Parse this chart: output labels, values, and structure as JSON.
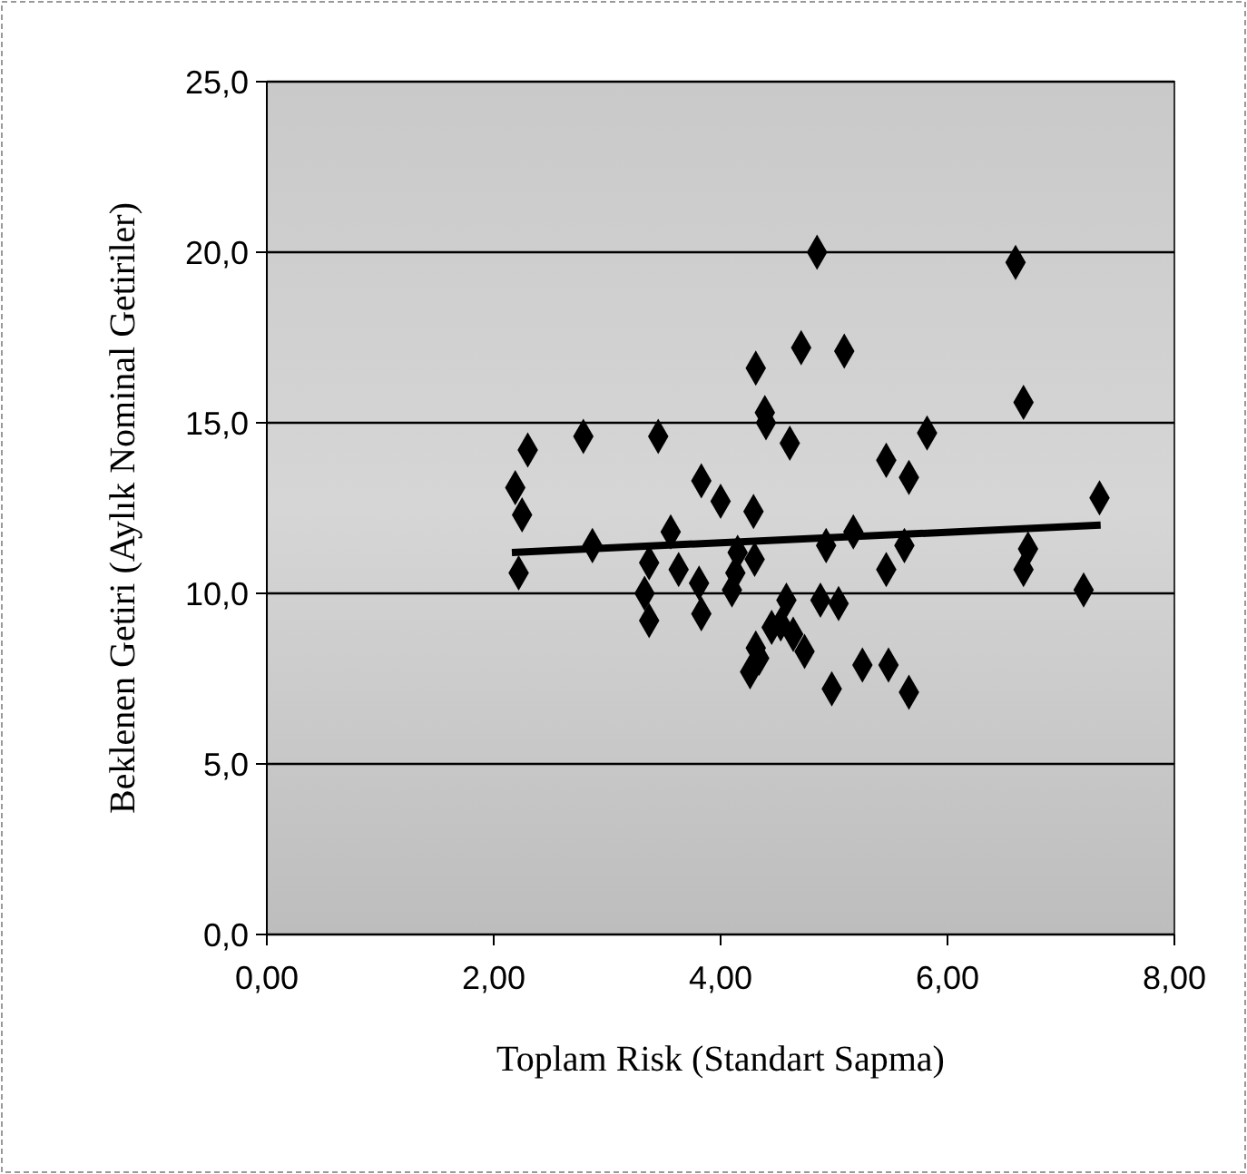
{
  "chart_data": {
    "type": "scatter",
    "xlabel": "Toplam Risk (Standart Sapma)",
    "ylabel": "Beklenen Getiri (Aylık Nominal Getiriler)",
    "xlim": [
      0,
      8
    ],
    "xticks": [
      {
        "value": 0,
        "label": "0,00"
      },
      {
        "value": 2,
        "label": "2,00"
      },
      {
        "value": 4,
        "label": "4,00"
      },
      {
        "value": 6,
        "label": "6,00"
      },
      {
        "value": 8,
        "label": "8,00"
      }
    ],
    "ylim": [
      0,
      25
    ],
    "yticks": [
      {
        "value": 0,
        "label": "0,0"
      },
      {
        "value": 5,
        "label": "5,0"
      },
      {
        "value": 10,
        "label": "10,0"
      },
      {
        "value": 15,
        "label": "15,0"
      },
      {
        "value": 20,
        "label": "20,0"
      },
      {
        "value": 25,
        "label": "25,0"
      }
    ],
    "grid": "y",
    "series": [
      {
        "color": "#000000",
        "marker": "diamond",
        "x": [
          4.85,
          4.71,
          5.09,
          4.31,
          4.39,
          4.4,
          4.61,
          2.3,
          2.79,
          3.45,
          2.19,
          2.25,
          3.83,
          4.0,
          4.29,
          3.56,
          2.87,
          2.22,
          3.37,
          3.63,
          3.81,
          3.33,
          3.37,
          3.83,
          4.15,
          4.13,
          4.1,
          4.93,
          4.58,
          4.88,
          5.04,
          4.45,
          4.31,
          4.64,
          4.74,
          4.26,
          4.98,
          4.34,
          4.53,
          6.6,
          6.67,
          5.82,
          5.46,
          5.66,
          7.34,
          5.17,
          5.62,
          5.46,
          6.71,
          6.67,
          7.2,
          5.25,
          5.48,
          5.66,
          4.3
        ],
        "values": [
          20.0,
          17.2,
          17.1,
          16.6,
          15.3,
          15.0,
          14.4,
          14.2,
          14.6,
          14.6,
          13.1,
          12.3,
          13.3,
          12.7,
          12.4,
          11.8,
          11.4,
          10.6,
          10.9,
          10.7,
          10.3,
          10.0,
          9.2,
          9.4,
          11.2,
          10.6,
          10.1,
          11.4,
          9.8,
          9.8,
          9.7,
          9.0,
          8.4,
          8.8,
          8.3,
          7.7,
          7.2,
          8.1,
          9.1,
          19.7,
          15.6,
          14.7,
          13.9,
          13.4,
          12.8,
          11.8,
          11.4,
          10.7,
          11.3,
          10.7,
          10.1,
          7.9,
          7.9,
          7.1,
          11.0
        ]
      },
      {
        "type": "line",
        "color": "#000000",
        "x": [
          2.16,
          7.35
        ],
        "values": [
          11.2,
          12.0
        ],
        "line_style": "solid"
      }
    ]
  }
}
